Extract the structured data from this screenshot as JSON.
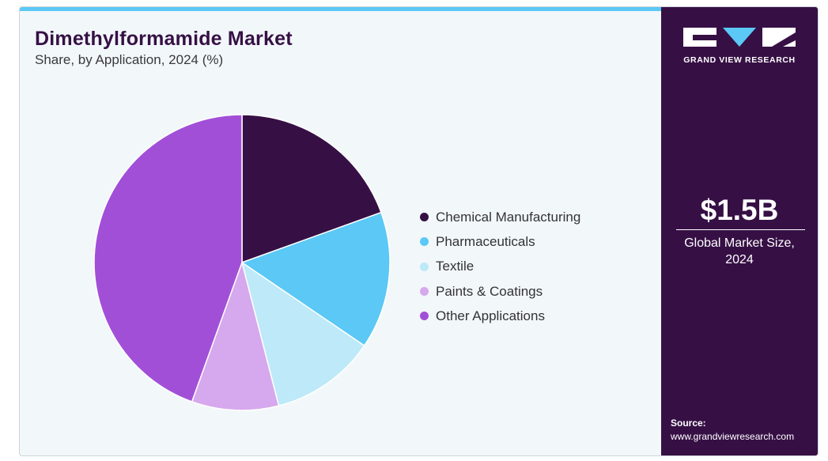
{
  "title": "Dimethylformamide Market",
  "subtitle": "Share, by Application, 2024 (%)",
  "brand": {
    "name": "GRAND VIEW RESEARCH",
    "colors": {
      "panel": "#361045",
      "accent": "#5bc8f5",
      "logo_triangle": "#5bc8f5"
    }
  },
  "kpi": {
    "value": "$1.5B",
    "label": "Global Market Size, 2024"
  },
  "source": {
    "label": "Source:",
    "url": "www.grandviewresearch.com"
  },
  "chart_data": {
    "type": "pie",
    "title": "Dimethylformamide Market",
    "subtitle": "Share, by Application, 2024 (%)",
    "legend_position": "right",
    "start_angle_deg": 0,
    "direction": "clockwise",
    "series": [
      {
        "name": "Chemical Manufacturing",
        "value": 19.5,
        "color": "#361045"
      },
      {
        "name": "Pharmaceuticals",
        "value": 15.0,
        "color": "#5bc8f5"
      },
      {
        "name": "Textile",
        "value": 11.5,
        "color": "#bde9f8"
      },
      {
        "name": "Paints & Coatings",
        "value": 9.5,
        "color": "#d6a8ed"
      },
      {
        "name": "Other Applications",
        "value": 44.5,
        "color": "#a24fd8"
      }
    ]
  }
}
